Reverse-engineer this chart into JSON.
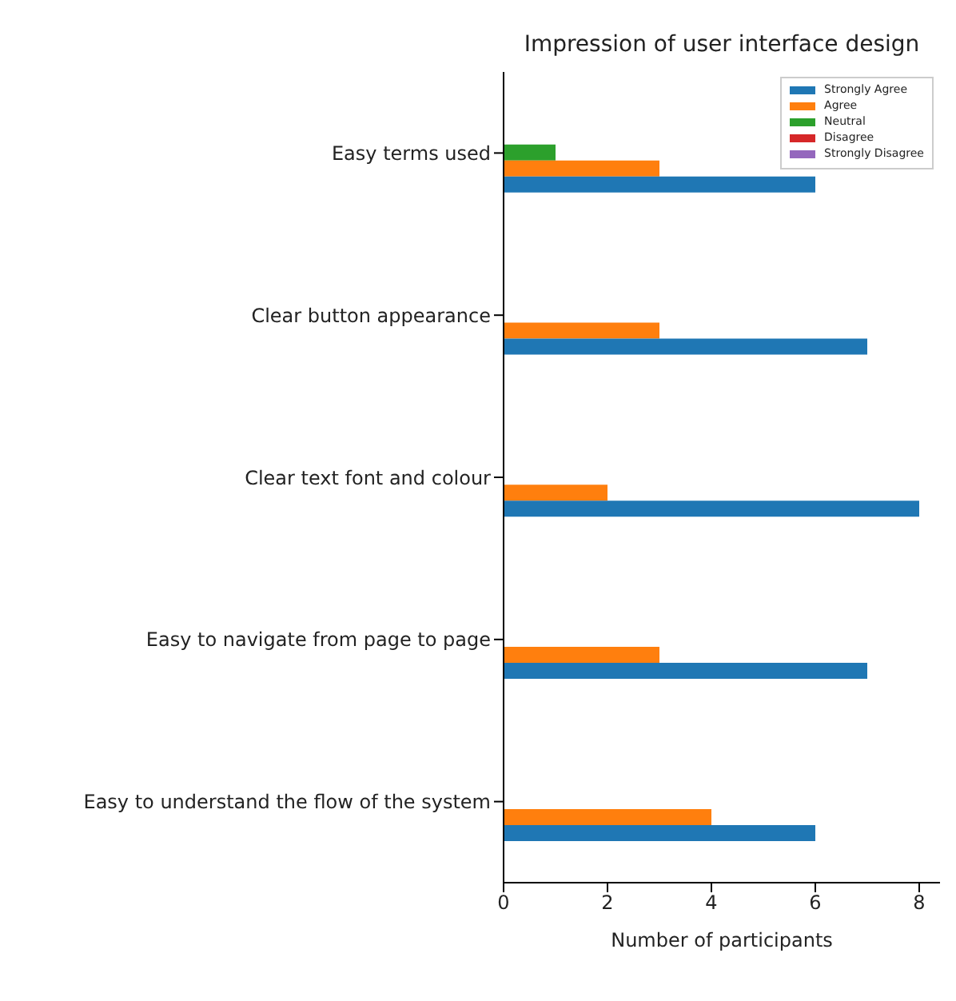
{
  "chart_data": {
    "type": "bar",
    "orientation": "horizontal",
    "title": "Impression of user interface design",
    "xlabel": "Number of participants",
    "categories": [
      "Easy terms used",
      "Clear button appearance",
      "Clear text font and colour",
      "Easy to navigate from page to page",
      "Easy to understand the flow of the system"
    ],
    "series": [
      {
        "name": "Strongly Agree",
        "color": "#1f77b4",
        "values": [
          6,
          7,
          8,
          7,
          6
        ]
      },
      {
        "name": "Agree",
        "color": "#ff7f0e",
        "values": [
          3,
          3,
          2,
          3,
          4
        ]
      },
      {
        "name": "Neutral",
        "color": "#2ca02c",
        "values": [
          1,
          0,
          0,
          0,
          0
        ]
      },
      {
        "name": "Disagree",
        "color": "#d62728",
        "values": [
          0,
          0,
          0,
          0,
          0
        ]
      },
      {
        "name": "Strongly Disagree",
        "color": "#9467bd",
        "values": [
          0,
          0,
          0,
          0,
          0
        ]
      }
    ],
    "xlim": [
      0,
      8.4
    ],
    "xticks": [
      0,
      2,
      4,
      6,
      8
    ],
    "grid": false,
    "legend": "top right"
  }
}
